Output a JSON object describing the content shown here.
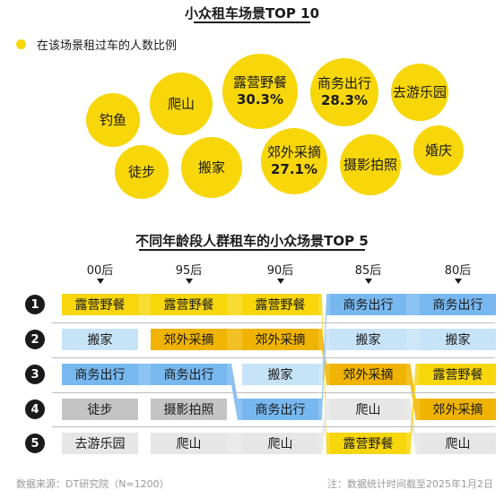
{
  "title_bubbles": "小众租车场景TOP 10",
  "legend_label": "在该场景租过车的人数比例",
  "title_ranking": "不同年龄段人群租车的小众场景TOP 5",
  "source": "数据来源：DT研究院（N=1200）",
  "note": "注：数据统计时间截至2025年1月2日",
  "colors": {
    "yellow": "#f7d60a",
    "orange": "#f0b400",
    "blue": "#78b8f0",
    "lightblue": "#c7e3f8",
    "gray": "#c4c4c4",
    "lightgray": "#e6e6e6"
  },
  "chart_data": [
    {
      "type": "bubble",
      "title": "小众租车场景TOP 10",
      "legend": [
        "在该场景租过车的人数比例"
      ],
      "items": [
        {
          "name": "露营野餐",
          "value": 30.3,
          "value_label": "30.3%"
        },
        {
          "name": "商务出行",
          "value": 28.3,
          "value_label": "28.3%"
        },
        {
          "name": "郊外采摘",
          "value": 27.1,
          "value_label": "27.1%"
        },
        {
          "name": "爬山",
          "value": null,
          "value_label": ""
        },
        {
          "name": "搬家",
          "value": null,
          "value_label": ""
        },
        {
          "name": "去游乐园",
          "value": null,
          "value_label": ""
        },
        {
          "name": "钓鱼",
          "value": null,
          "value_label": ""
        },
        {
          "name": "徒步",
          "value": null,
          "value_label": ""
        },
        {
          "name": "摄影拍照",
          "value": null,
          "value_label": ""
        },
        {
          "name": "婚庆",
          "value": null,
          "value_label": ""
        }
      ]
    },
    {
      "type": "table",
      "title": "不同年龄段人群租车的小众场景TOP 5",
      "columns": [
        "00后",
        "95后",
        "90后",
        "85后",
        "80后"
      ],
      "ranks": [
        "1",
        "2",
        "3",
        "4",
        "5"
      ],
      "rows": [
        [
          "露营野餐",
          "露营野餐",
          "露营野餐",
          "商务出行",
          "商务出行"
        ],
        [
          "搬家",
          "郊外采摘",
          "郊外采摘",
          "搬家",
          "搬家"
        ],
        [
          "商务出行",
          "商务出行",
          "搬家",
          "郊外采摘",
          "露营野餐"
        ],
        [
          "徒步",
          "摄影拍照",
          "商务出行",
          "爬山",
          "郊外采摘"
        ],
        [
          "去游乐园",
          "爬山",
          "爬山",
          "露营野餐",
          "爬山"
        ]
      ]
    }
  ]
}
